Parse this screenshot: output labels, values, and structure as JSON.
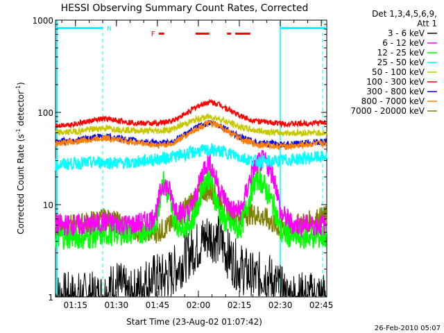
{
  "chart_data": {
    "type": "line",
    "title": "HESSI Observing Summary Count Rates, Corrected",
    "xlabel": "Start Time (23-Aug-02 01:07:42)",
    "ylabel": "Corrected Count Rate (s⁻¹ detector⁻¹)",
    "ylabel_main": "Corrected Count Rate (s",
    "ylabel_sup1": "-1",
    "ylabel_mid": " detector",
    "ylabel_sup2": "-1",
    "ylabel_end": ")",
    "y_scale": "log",
    "ylim": [
      1,
      1000
    ],
    "xlim_min": [
      67.7,
      167
    ],
    "y_ticks": [
      {
        "value": 1,
        "label": "1"
      },
      {
        "value": 10,
        "label": "10"
      },
      {
        "value": 100,
        "label": "100"
      },
      {
        "value": 1000,
        "label": "1000"
      }
    ],
    "x_ticks": [
      {
        "min": 75,
        "label": "01:15"
      },
      {
        "min": 90,
        "label": "01:30"
      },
      {
        "min": 105,
        "label": "01:45"
      },
      {
        "min": 120,
        "label": "02:00"
      },
      {
        "min": 135,
        "label": "02:15"
      },
      {
        "min": 150,
        "label": "02:30"
      },
      {
        "min": 165,
        "label": "02:45"
      }
    ],
    "legend_header": [
      "Det 1,3,4,5,6,9,",
      "Att 1"
    ],
    "legend_position": "right",
    "series": [
      {
        "name": "3 - 6 keV",
        "color": "#000000",
        "x": [
          67.7,
          85,
          90,
          95,
          98,
          100,
          104,
          107,
          110,
          113,
          115,
          118,
          120,
          122,
          124,
          126,
          128,
          130,
          132,
          134,
          136,
          138,
          140,
          142,
          144,
          146,
          148,
          150,
          152,
          155,
          160,
          167
        ],
        "values": [
          1,
          1,
          1.4,
          1,
          1.2,
          1.4,
          1.6,
          1.6,
          1.8,
          2.2,
          2.6,
          3.2,
          3.6,
          4.2,
          4.6,
          4.4,
          4.0,
          3.2,
          2.6,
          2.2,
          2.0,
          1.8,
          1.6,
          1.6,
          1.8,
          1.6,
          1.4,
          1.2,
          1,
          1,
          1,
          1
        ]
      },
      {
        "name": "6 - 12 keV",
        "color": "#ff00ff",
        "x": [
          67.7,
          80,
          86,
          90,
          95,
          100,
          103,
          105,
          107,
          109,
          111,
          113,
          116,
          118,
          120,
          122,
          124,
          126,
          128,
          130,
          132,
          134,
          136,
          138,
          140,
          142,
          144,
          146,
          148,
          150,
          155,
          160,
          167
        ],
        "values": [
          6,
          6,
          6.5,
          6.2,
          6,
          6.4,
          7,
          9,
          17,
          15,
          10,
          8.5,
          8,
          10,
          15,
          25,
          30,
          20,
          14,
          11,
          9,
          8.5,
          9,
          15,
          24,
          28,
          30,
          25,
          18,
          8,
          6,
          6,
          6
        ]
      },
      {
        "name": "12 - 25 keV",
        "color": "#00ff00",
        "x": [
          67.7,
          80,
          86,
          90,
          95,
          100,
          103,
          105,
          107,
          109,
          111,
          113,
          116,
          118,
          120,
          122,
          124,
          126,
          128,
          130,
          132,
          134,
          136,
          138,
          140,
          142,
          144,
          146,
          148,
          150,
          155,
          160,
          167
        ],
        "values": [
          4.5,
          4.5,
          4.8,
          5,
          5,
          5.2,
          5.5,
          7,
          18,
          12,
          7,
          6,
          6,
          7,
          10,
          18,
          20,
          12,
          8,
          6.5,
          6,
          5.5,
          6,
          10,
          16,
          20,
          16,
          12,
          9,
          5,
          4.5,
          4.5,
          4.5
        ]
      },
      {
        "name": "25 - 50 keV",
        "color": "#00ffff",
        "x": [
          67.7,
          75,
          85,
          95,
          100,
          105,
          110,
          115,
          120,
          125,
          130,
          135,
          140,
          145,
          150,
          155,
          160,
          167
        ],
        "values": [
          27,
          28,
          29,
          28,
          30,
          31,
          33,
          35,
          38,
          39,
          37,
          33,
          30,
          29,
          30,
          31,
          32,
          33
        ]
      },
      {
        "name": "50 - 100 keV",
        "color": "#c8c800",
        "x": [
          67.7,
          75,
          85,
          90,
          95,
          100,
          105,
          110,
          115,
          120,
          124,
          128,
          130,
          135,
          140,
          145,
          150,
          155,
          160,
          167
        ],
        "values": [
          60,
          62,
          68,
          66,
          64,
          63,
          63,
          65,
          75,
          85,
          90,
          85,
          80,
          70,
          64,
          62,
          60,
          60,
          60,
          60
        ]
      },
      {
        "name": "100 - 300 keV",
        "color": "#ff0000",
        "x": [
          67.7,
          75,
          85,
          90,
          95,
          100,
          105,
          110,
          115,
          120,
          124,
          128,
          130,
          135,
          140,
          145,
          150,
          155,
          160,
          167
        ],
        "values": [
          72,
          75,
          85,
          82,
          78,
          76,
          76,
          80,
          95,
          118,
          130,
          122,
          112,
          92,
          82,
          78,
          76,
          75,
          76,
          78
        ]
      },
      {
        "name": "300 - 800 keV",
        "color": "#0000ff",
        "x": [
          67.7,
          75,
          85,
          90,
          95,
          100,
          105,
          110,
          115,
          120,
          124,
          128,
          130,
          135,
          140,
          145,
          150,
          155,
          160,
          167
        ],
        "values": [
          48,
          50,
          55,
          53,
          50,
          48,
          46,
          47,
          57,
          70,
          78,
          72,
          66,
          54,
          48,
          46,
          45,
          45,
          47,
          48
        ]
      },
      {
        "name": "800 - 7000 keV",
        "color": "#ff8000",
        "x": [
          67.7,
          75,
          85,
          90,
          95,
          100,
          105,
          110,
          115,
          120,
          124,
          128,
          130,
          135,
          140,
          145,
          150,
          155,
          160,
          167
        ],
        "values": [
          46,
          48,
          53,
          51,
          48,
          46,
          44,
          45,
          55,
          68,
          76,
          70,
          64,
          52,
          46,
          44,
          43,
          43,
          45,
          46
        ]
      },
      {
        "name": "7000 - 20000 keV",
        "color": "#808000",
        "x": [
          67.7,
          75,
          80,
          85,
          90,
          95,
          100,
          105,
          110,
          113,
          115,
          118,
          120,
          122,
          124,
          126,
          128,
          130,
          132,
          135,
          140,
          145,
          148,
          150,
          155,
          160,
          167
        ],
        "values": [
          6,
          6,
          6.5,
          7,
          6.5,
          5.5,
          5,
          5,
          6,
          7.5,
          9,
          11,
          13,
          14,
          14,
          13,
          11,
          9,
          8,
          7.5,
          8,
          7,
          6,
          5.5,
          6,
          6.5,
          7.5
        ]
      }
    ],
    "annotations": {
      "saa_marker": "N",
      "flare_marker": "F",
      "footer_date": "26-Feb-2010 05:07"
    },
    "night_bars_min": [
      [
        67.7,
        85
      ],
      [
        150,
        167
      ]
    ],
    "flare_bars_min": [
      [
        105.5,
        107.5
      ],
      [
        119,
        124
      ],
      [
        130.5,
        132
      ],
      [
        133.5,
        139
      ]
    ]
  }
}
